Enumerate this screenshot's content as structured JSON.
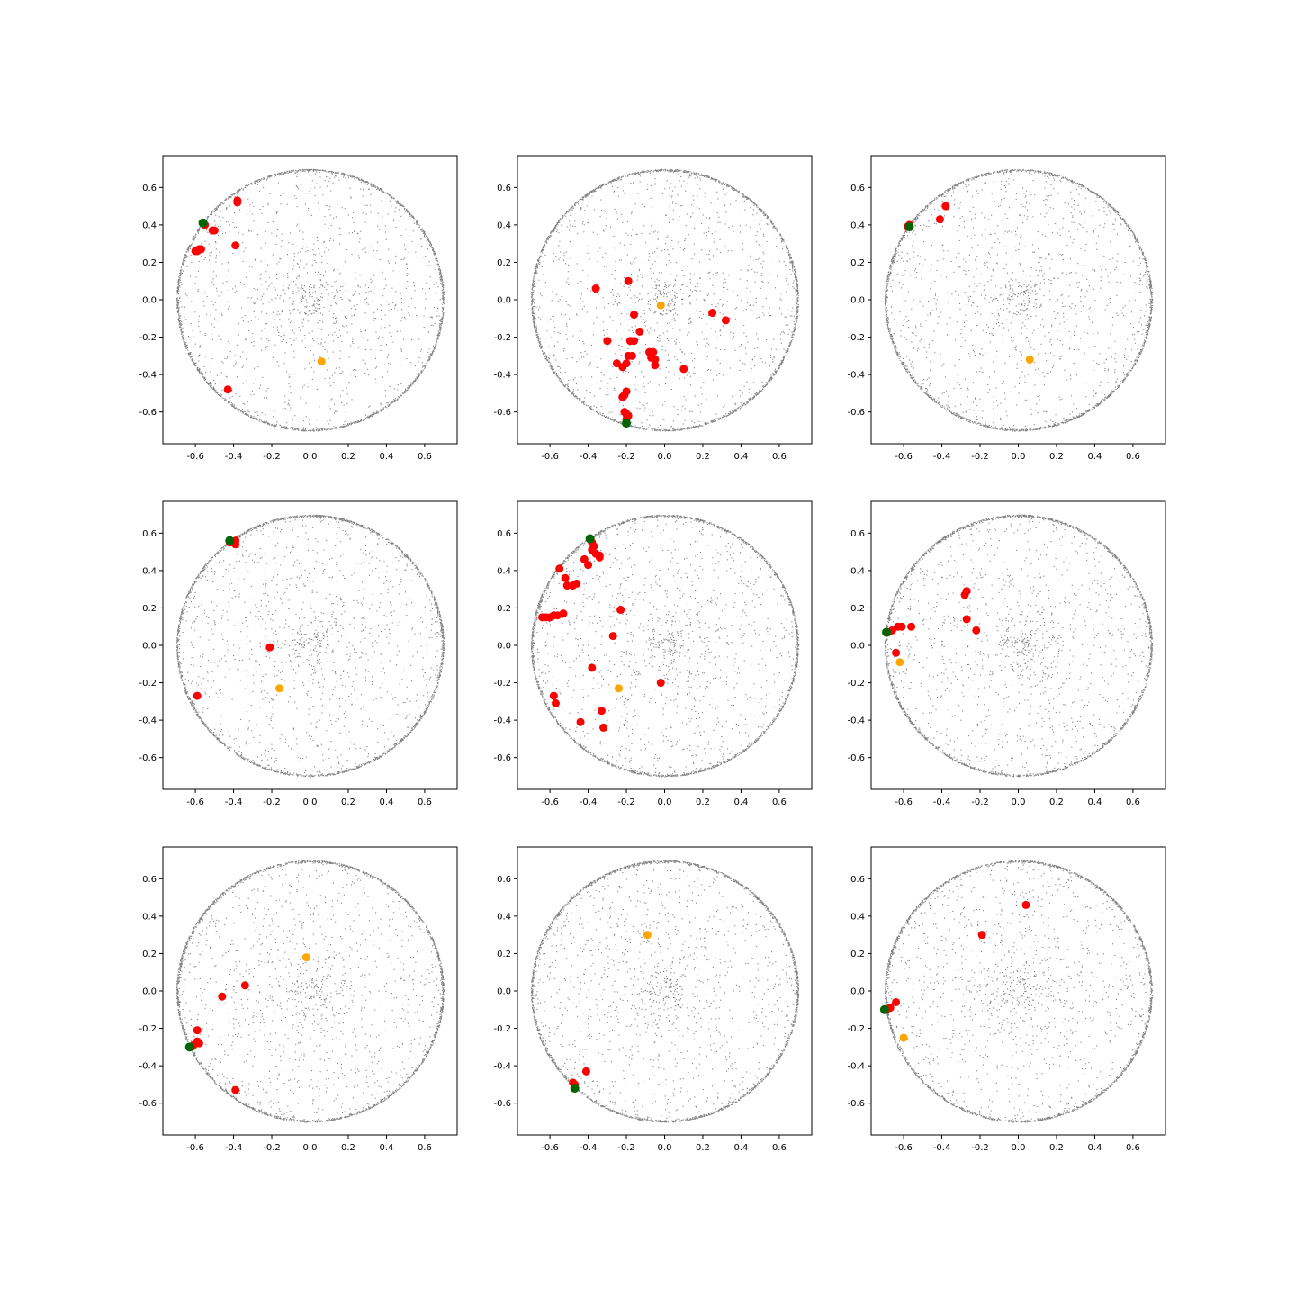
{
  "figure": {
    "rows": 3,
    "cols": 3
  },
  "colors": {
    "background_points": "#808080",
    "neighbors": "#ff0000",
    "query": "#006400",
    "centroid": "#ffa500"
  },
  "chart_data": [
    {
      "type": "scatter",
      "xlim": [
        -0.77,
        0.77
      ],
      "ylim": [
        -0.77,
        0.77
      ],
      "xticks": [
        "-0.6",
        "-0.4",
        "-0.2",
        "0.0",
        "0.2",
        "0.4",
        "0.6"
      ],
      "yticks": [
        "-0.6",
        "-0.4",
        "-0.2",
        "0.0",
        "0.2",
        "0.4",
        "0.6"
      ],
      "background": {
        "shape": "disk",
        "radius": 0.7,
        "color": "gray"
      },
      "neighbors": [
        [
          -0.56,
          0.41
        ],
        [
          -0.55,
          0.4
        ],
        [
          -0.38,
          0.53
        ],
        [
          -0.38,
          0.52
        ],
        [
          -0.51,
          0.37
        ],
        [
          -0.5,
          0.37
        ],
        [
          -0.39,
          0.29
        ],
        [
          -0.58,
          0.27
        ],
        [
          -0.59,
          0.26
        ],
        [
          -0.6,
          0.26
        ],
        [
          -0.57,
          0.27
        ],
        [
          -0.43,
          -0.48
        ]
      ],
      "query": [
        -0.56,
        0.41
      ],
      "centroid": [
        0.06,
        -0.33
      ]
    },
    {
      "type": "scatter",
      "xlim": [
        -0.77,
        0.77
      ],
      "ylim": [
        -0.77,
        0.77
      ],
      "xticks": [
        "-0.6",
        "-0.4",
        "-0.2",
        "0.0",
        "0.2",
        "0.4",
        "0.6"
      ],
      "yticks": [
        "-0.6",
        "-0.4",
        "-0.2",
        "0.0",
        "0.2",
        "0.4",
        "0.6"
      ],
      "background": {
        "shape": "disk",
        "radius": 0.7,
        "color": "gray"
      },
      "neighbors": [
        [
          -0.36,
          0.06
        ],
        [
          -0.19,
          0.1
        ],
        [
          -0.16,
          -0.08
        ],
        [
          -0.13,
          -0.17
        ],
        [
          0.25,
          -0.07
        ],
        [
          0.32,
          -0.11
        ],
        [
          -0.3,
          -0.22
        ],
        [
          -0.18,
          -0.22
        ],
        [
          -0.16,
          -0.22
        ],
        [
          -0.25,
          -0.34
        ],
        [
          -0.22,
          -0.36
        ],
        [
          -0.2,
          -0.34
        ],
        [
          -0.19,
          -0.3
        ],
        [
          -0.17,
          -0.3
        ],
        [
          -0.08,
          -0.28
        ],
        [
          -0.06,
          -0.28
        ],
        [
          -0.07,
          -0.31
        ],
        [
          -0.05,
          -0.32
        ],
        [
          -0.05,
          -0.35
        ],
        [
          0.1,
          -0.37
        ],
        [
          -0.2,
          -0.49
        ],
        [
          -0.21,
          -0.51
        ],
        [
          -0.22,
          -0.52
        ],
        [
          -0.21,
          -0.6
        ],
        [
          -0.2,
          -0.61
        ],
        [
          -0.19,
          -0.62
        ],
        [
          -0.2,
          -0.64
        ]
      ],
      "query": [
        -0.2,
        -0.66
      ],
      "centroid": [
        -0.02,
        -0.03
      ]
    },
    {
      "type": "scatter",
      "xlim": [
        -0.77,
        0.77
      ],
      "ylim": [
        -0.77,
        0.77
      ],
      "xticks": [
        "-0.6",
        "-0.4",
        "-0.2",
        "0.0",
        "0.2",
        "0.4",
        "0.6"
      ],
      "yticks": [
        "-0.6",
        "-0.4",
        "-0.2",
        "0.0",
        "0.2",
        "0.4",
        "0.6"
      ],
      "background": {
        "shape": "disk",
        "radius": 0.7,
        "color": "gray"
      },
      "neighbors": [
        [
          -0.38,
          0.5
        ],
        [
          -0.41,
          0.43
        ],
        [
          -0.58,
          0.39
        ],
        [
          -0.57,
          0.4
        ]
      ],
      "query": [
        -0.57,
        0.39
      ],
      "centroid": [
        0.06,
        -0.32
      ]
    },
    {
      "type": "scatter",
      "xlim": [
        -0.77,
        0.77
      ],
      "ylim": [
        -0.77,
        0.77
      ],
      "xticks": [
        "-0.6",
        "-0.4",
        "-0.2",
        "0.0",
        "0.2",
        "0.4",
        "0.6"
      ],
      "yticks": [
        "-0.6",
        "-0.4",
        "-0.2",
        "0.0",
        "0.2",
        "0.4",
        "0.6"
      ],
      "background": {
        "shape": "disk",
        "radius": 0.7,
        "color": "gray"
      },
      "neighbors": [
        [
          -0.39,
          0.56
        ],
        [
          -0.4,
          0.55
        ],
        [
          -0.39,
          0.54
        ],
        [
          -0.42,
          0.55
        ],
        [
          -0.21,
          -0.01
        ],
        [
          -0.59,
          -0.27
        ]
      ],
      "query": [
        -0.42,
        0.56
      ],
      "centroid": [
        -0.16,
        -0.23
      ]
    },
    {
      "type": "scatter",
      "xlim": [
        -0.77,
        0.77
      ],
      "ylim": [
        -0.77,
        0.77
      ],
      "xticks": [
        "-0.6",
        "-0.4",
        "-0.2",
        "0.0",
        "0.2",
        "0.4",
        "0.6"
      ],
      "yticks": [
        "-0.6",
        "-0.4",
        "-0.2",
        "0.0",
        "0.2",
        "0.4",
        "0.6"
      ],
      "background": {
        "shape": "disk",
        "radius": 0.7,
        "color": "gray"
      },
      "neighbors": [
        [
          -0.38,
          0.55
        ],
        [
          -0.37,
          0.53
        ],
        [
          -0.38,
          0.51
        ],
        [
          -0.36,
          0.49
        ],
        [
          -0.34,
          0.48
        ],
        [
          -0.34,
          0.47
        ],
        [
          -0.42,
          0.46
        ],
        [
          -0.4,
          0.43
        ],
        [
          -0.55,
          0.41
        ],
        [
          -0.52,
          0.36
        ],
        [
          -0.51,
          0.32
        ],
        [
          -0.48,
          0.32
        ],
        [
          -0.46,
          0.33
        ],
        [
          -0.64,
          0.15
        ],
        [
          -0.62,
          0.15
        ],
        [
          -0.6,
          0.15
        ],
        [
          -0.58,
          0.16
        ],
        [
          -0.56,
          0.16
        ],
        [
          -0.53,
          0.17
        ],
        [
          -0.23,
          0.19
        ],
        [
          -0.27,
          0.05
        ],
        [
          -0.38,
          -0.12
        ],
        [
          -0.02,
          -0.2
        ],
        [
          -0.58,
          -0.27
        ],
        [
          -0.57,
          -0.31
        ],
        [
          -0.33,
          -0.35
        ],
        [
          -0.44,
          -0.41
        ],
        [
          -0.32,
          -0.44
        ]
      ],
      "query": [
        -0.39,
        0.57
      ],
      "centroid": [
        -0.24,
        -0.23
      ]
    },
    {
      "type": "scatter",
      "xlim": [
        -0.77,
        0.77
      ],
      "ylim": [
        -0.77,
        0.77
      ],
      "xticks": [
        "-0.6",
        "-0.4",
        "-0.2",
        "0.0",
        "0.2",
        "0.4",
        "0.6"
      ],
      "yticks": [
        "-0.6",
        "-0.4",
        "-0.2",
        "0.0",
        "0.2",
        "0.4",
        "0.6"
      ],
      "background": {
        "shape": "disk",
        "radius": 0.7,
        "color": "gray"
      },
      "neighbors": [
        [
          -0.27,
          0.29
        ],
        [
          -0.28,
          0.27
        ],
        [
          -0.27,
          0.14
        ],
        [
          -0.63,
          0.1
        ],
        [
          -0.61,
          0.1
        ],
        [
          -0.56,
          0.1
        ],
        [
          -0.22,
          0.08
        ],
        [
          -0.68,
          0.07
        ],
        [
          -0.66,
          0.08
        ],
        [
          -0.64,
          -0.04
        ]
      ],
      "query": [
        -0.69,
        0.07
      ],
      "centroid": [
        -0.62,
        -0.09
      ]
    },
    {
      "type": "scatter",
      "xlim": [
        -0.77,
        0.77
      ],
      "ylim": [
        -0.77,
        0.77
      ],
      "xticks": [
        "-0.6",
        "-0.4",
        "-0.2",
        "0.0",
        "0.2",
        "0.4",
        "0.6"
      ],
      "yticks": [
        "-0.6",
        "-0.4",
        "-0.2",
        "0.0",
        "0.2",
        "0.4",
        "0.6"
      ],
      "background": {
        "shape": "disk",
        "radius": 0.7,
        "color": "gray"
      },
      "neighbors": [
        [
          -0.34,
          0.03
        ],
        [
          -0.46,
          -0.03
        ],
        [
          -0.59,
          -0.21
        ],
        [
          -0.58,
          -0.28
        ],
        [
          -0.59,
          -0.27
        ],
        [
          -0.61,
          -0.29
        ],
        [
          -0.62,
          -0.3
        ],
        [
          -0.39,
          -0.53
        ]
      ],
      "query": [
        -0.63,
        -0.3
      ],
      "centroid": [
        -0.02,
        0.18
      ]
    },
    {
      "type": "scatter",
      "xlim": [
        -0.77,
        0.77
      ],
      "ylim": [
        -0.77,
        0.77
      ],
      "xticks": [
        "-0.6",
        "-0.4",
        "-0.2",
        "0.0",
        "0.2",
        "0.4",
        "0.6"
      ],
      "yticks": [
        "-0.6",
        "-0.4",
        "-0.2",
        "0.0",
        "0.2",
        "0.4",
        "0.6"
      ],
      "background": {
        "shape": "disk",
        "radius": 0.7,
        "color": "gray"
      },
      "neighbors": [
        [
          -0.41,
          -0.43
        ],
        [
          -0.48,
          -0.49
        ],
        [
          -0.47,
          -0.5
        ]
      ],
      "query": [
        -0.47,
        -0.52
      ],
      "centroid": [
        -0.09,
        0.3
      ]
    },
    {
      "type": "scatter",
      "xlim": [
        -0.77,
        0.77
      ],
      "ylim": [
        -0.77,
        0.77
      ],
      "xticks": [
        "-0.6",
        "-0.4",
        "-0.2",
        "0.0",
        "0.2",
        "0.4",
        "0.6"
      ],
      "yticks": [
        "-0.6",
        "-0.4",
        "-0.2",
        "0.0",
        "0.2",
        "0.4",
        "0.6"
      ],
      "background": {
        "shape": "disk",
        "radius": 0.7,
        "color": "gray"
      },
      "neighbors": [
        [
          0.04,
          0.46
        ],
        [
          -0.19,
          0.3
        ],
        [
          -0.64,
          -0.06
        ],
        [
          -0.67,
          -0.09
        ],
        [
          -0.69,
          -0.1
        ]
      ],
      "query": [
        -0.7,
        -0.1
      ],
      "centroid": [
        -0.6,
        -0.25
      ]
    }
  ]
}
